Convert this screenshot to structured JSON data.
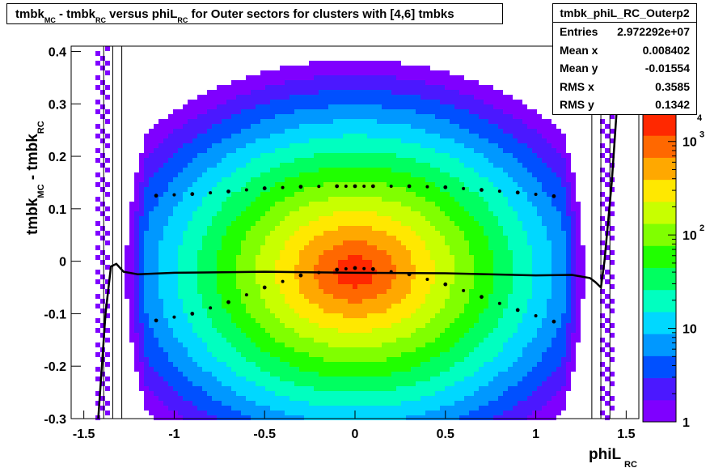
{
  "chart_data": {
    "type": "heatmap",
    "title_parts": [
      "tmbk",
      "MC",
      " - tmbk",
      "RC",
      " versus phiL",
      "RC",
      " for Outer sectors for clusters with [4,6] tmbks"
    ],
    "xlabel": "phiL",
    "xlabel_sub": "RC",
    "ylabel_parts": [
      "tmbk",
      "MC",
      " - tmbk",
      "RC"
    ],
    "xlim": [
      -1.57,
      1.57
    ],
    "ylim": [
      -0.3,
      0.41
    ],
    "xticks": [
      "-1.5",
      "-1",
      "-0.5",
      "0",
      "0.5",
      "1",
      "1.5"
    ],
    "yticks": [
      "-0.3",
      "-0.2",
      "-0.1",
      "0",
      "0.1",
      "0.2",
      "0.3",
      "0.4"
    ],
    "colorbar": {
      "scale": "log",
      "range": [
        1,
        2000
      ],
      "labels": [
        {
          "base": "1",
          "exp": ""
        },
        {
          "base": "10",
          "exp": ""
        },
        {
          "base": "10",
          "exp": "2"
        },
        {
          "base": "10",
          "exp": "3"
        }
      ],
      "top_partial_exp": "4"
    },
    "stats": {
      "name": "tmbk_phiL_RC_Outerp2",
      "rows": [
        {
          "label": "Entries",
          "value": "2.972292e+07"
        },
        {
          "label": "Mean x",
          "value": "0.008402"
        },
        {
          "label": "Mean y",
          "value": "-0.01554"
        },
        {
          "label": "RMS x",
          "value": "0.3585"
        },
        {
          "label": "RMS y",
          "value": "0.1342"
        }
      ]
    },
    "series": [
      {
        "values_x": [
          -1.1,
          -0.9,
          -0.7,
          -0.5,
          -0.3,
          -0.1,
          0.0,
          0.1,
          0.3,
          0.5,
          0.7,
          0.9,
          1.1
        ],
        "values_y": [
          0.125,
          0.128,
          0.133,
          0.139,
          0.142,
          0.143,
          0.143,
          0.143,
          0.143,
          0.141,
          0.136,
          0.131,
          0.124
        ]
      },
      {
        "values_x": [
          -1.1,
          -0.9,
          -0.7,
          -0.5,
          -0.3,
          -0.1,
          0.0,
          0.1,
          0.3,
          0.5,
          0.7,
          0.9,
          1.1
        ],
        "values_y": [
          -0.113,
          -0.1,
          -0.078,
          -0.05,
          -0.027,
          -0.016,
          -0.013,
          -0.015,
          -0.025,
          -0.044,
          -0.068,
          -0.093,
          -0.115
        ]
      },
      {
        "values_x": [
          -1.42,
          -1.38,
          -1.35,
          -1.32,
          -1.28,
          -1.2,
          -1.0,
          -0.5,
          0.0,
          0.5,
          1.0,
          1.2,
          1.3,
          1.33,
          1.36,
          1.38,
          1.42,
          1.46,
          1.5
        ],
        "values_y": [
          -0.3,
          -0.1,
          -0.01,
          -0.005,
          -0.02,
          -0.025,
          -0.022,
          -0.02,
          -0.022,
          -0.023,
          -0.027,
          -0.026,
          -0.032,
          -0.04,
          -0.05,
          0.0,
          0.15,
          0.35,
          0.42
        ]
      }
    ]
  }
}
